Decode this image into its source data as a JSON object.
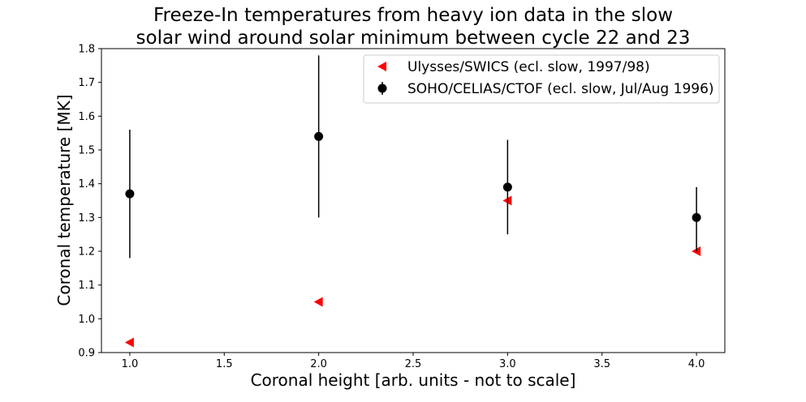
{
  "chart_data": {
    "type": "scatter",
    "title": [
      "Freeze-In temperatures from heavy ion data in the slow",
      "solar wind around solar minimum between cycle 22 and 23"
    ],
    "xlabel": "Coronal height [arb. units - not to scale]",
    "ylabel": "Coronal temperature [MK]",
    "xlim": [
      0.85,
      4.15
    ],
    "ylim": [
      0.9,
      1.8
    ],
    "xticks": [
      "1.0",
      "1.5",
      "2.0",
      "2.5",
      "3.0",
      "3.5",
      "4.0"
    ],
    "yticks": [
      "0.9",
      "1.0",
      "1.1",
      "1.2",
      "1.3",
      "1.4",
      "1.5",
      "1.6",
      "1.7",
      "1.8"
    ],
    "grid": false,
    "legend_position": "top-right",
    "series": [
      {
        "name": "Ulysses/SWICS (ecl. slow, 1997/98)",
        "marker": "triangle-left",
        "color": "#ff0000",
        "x": [
          1,
          2,
          3,
          4
        ],
        "y": [
          0.93,
          1.05,
          1.35,
          1.2
        ]
      },
      {
        "name": "SOHO/CELIAS/CTOF (ecl. slow, Jul/Aug 1996)",
        "marker": "circle",
        "color": "#000000",
        "errorbar": true,
        "x": [
          1,
          2,
          3,
          4
        ],
        "y": [
          1.37,
          1.54,
          1.39,
          1.3
        ],
        "yerr_low": [
          1.18,
          1.3,
          1.25,
          1.2
        ],
        "yerr_high": [
          1.56,
          1.78,
          1.53,
          1.39
        ]
      }
    ]
  }
}
